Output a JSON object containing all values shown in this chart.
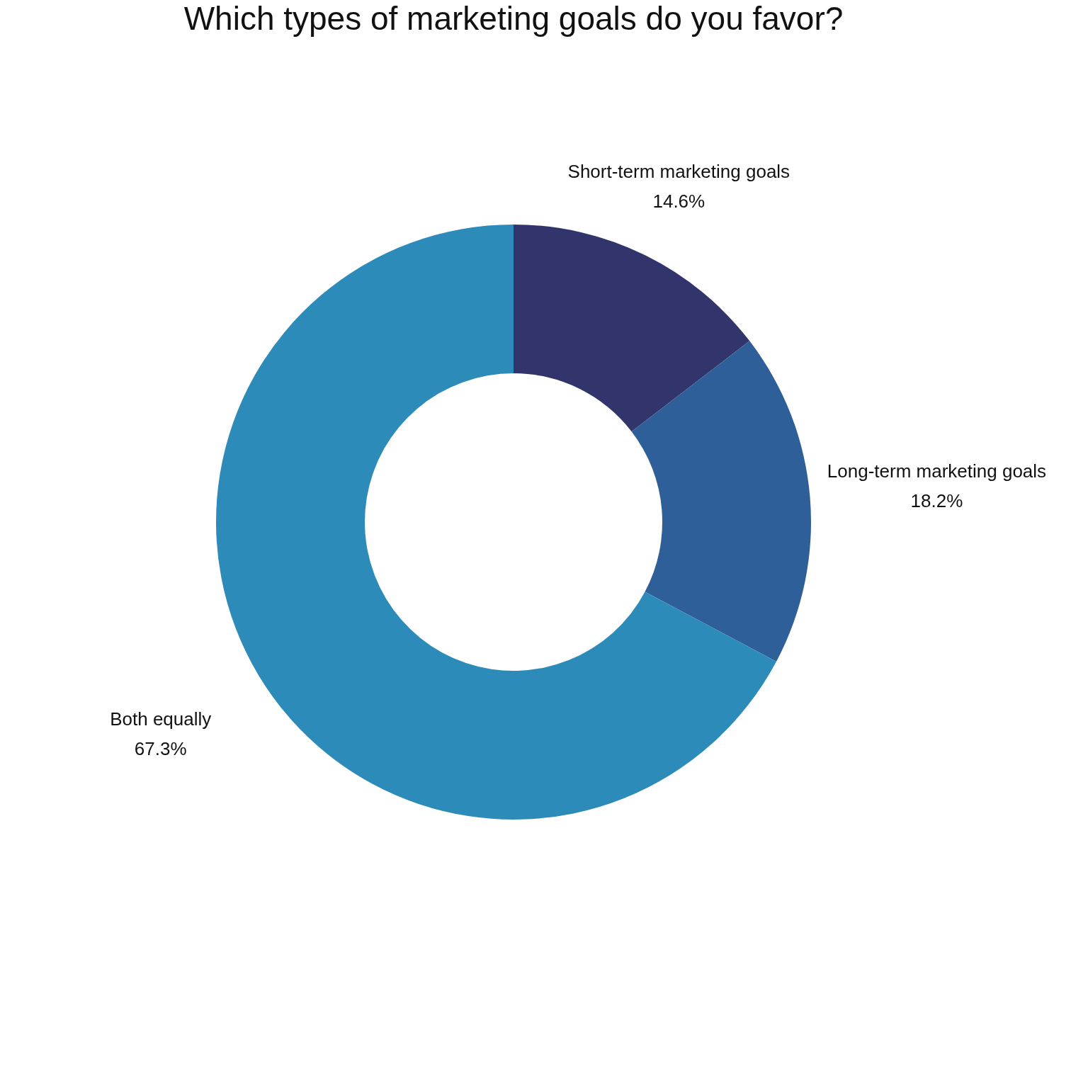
{
  "chart_data": {
    "type": "donut",
    "title": "Which types of marketing goals do you favor?",
    "categories": [
      "Short-term marketing goals",
      "Long-term marketing goals",
      "Both equally"
    ],
    "values": [
      14.6,
      18.2,
      67.3
    ],
    "colors": [
      "#32356b",
      "#2e5f98",
      "#2d8bba"
    ],
    "value_labels": [
      "14.6%",
      "18.2%",
      "67.3%"
    ],
    "legend": false
  }
}
